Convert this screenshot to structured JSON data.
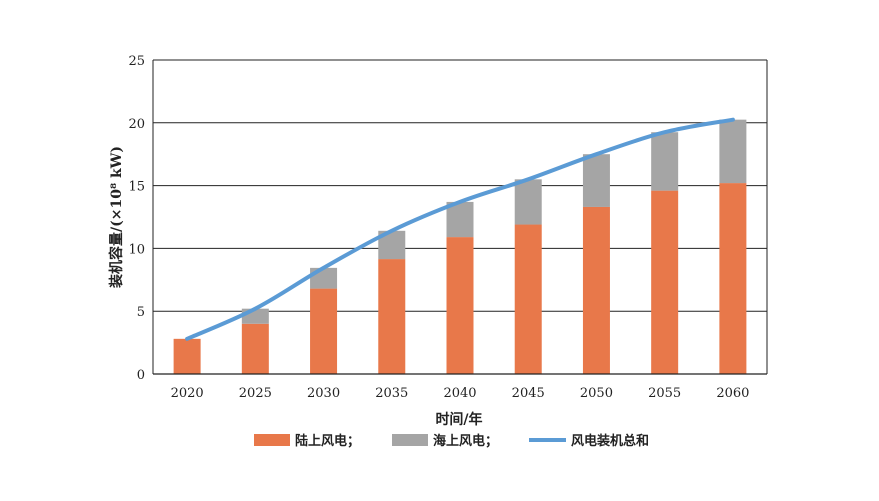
{
  "chart_data": {
    "type": "bar",
    "stacked": true,
    "categories": [
      "2020",
      "2025",
      "2030",
      "2035",
      "2040",
      "2045",
      "2050",
      "2055",
      "2060"
    ],
    "series": [
      {
        "name": "陆上风电；",
        "type": "bar",
        "color": "#e8784a",
        "values": [
          2.8,
          4.0,
          6.8,
          9.15,
          10.9,
          11.9,
          13.3,
          14.6,
          15.2
        ]
      },
      {
        "name": "海上风电；",
        "type": "bar",
        "color": "#a5a5a5",
        "values": [
          0.0,
          1.2,
          1.65,
          2.25,
          2.8,
          3.6,
          4.2,
          4.65,
          5.05
        ]
      },
      {
        "name": "风电装机总和",
        "type": "line",
        "color": "#5b9bd5",
        "values": [
          2.8,
          5.2,
          8.45,
          11.4,
          13.7,
          15.5,
          17.5,
          19.25,
          20.25
        ]
      }
    ],
    "xlabel": "时间/年",
    "ylabel": "装机容量/(×10⁸ kW)",
    "ylim": [
      0,
      25
    ],
    "yticks": [
      "0",
      "5",
      "10",
      "15",
      "20",
      "25"
    ],
    "grid": true,
    "legend": "bottom"
  }
}
